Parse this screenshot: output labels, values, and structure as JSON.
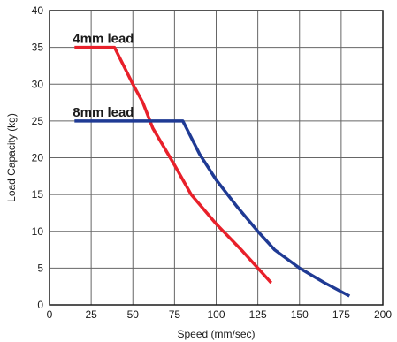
{
  "chart_data": {
    "type": "line",
    "xlabel": "Speed (mm/sec)",
    "ylabel": "Load Capacity (kg)",
    "xlim": [
      0,
      200
    ],
    "ylim": [
      0,
      40
    ],
    "xticks": [
      "0",
      "25",
      "50",
      "75",
      "100",
      "125",
      "150",
      "175",
      "200"
    ],
    "yticks": [
      "0",
      "5",
      "10",
      "15",
      "20",
      "25",
      "30",
      "35",
      "40"
    ],
    "grid": true,
    "legend": "inline",
    "series": [
      {
        "name": "4mm lead",
        "color": "#e8202a",
        "points": [
          [
            15,
            35
          ],
          [
            39,
            35
          ],
          [
            50,
            30
          ],
          [
            56,
            27.5
          ],
          [
            62,
            24
          ],
          [
            75,
            19
          ],
          [
            85,
            15
          ],
          [
            100,
            11
          ],
          [
            115,
            7.5
          ],
          [
            133,
            3
          ]
        ]
      },
      {
        "name": "8mm lead",
        "color": "#1f3a94",
        "points": [
          [
            15,
            25
          ],
          [
            80,
            25
          ],
          [
            90,
            20.5
          ],
          [
            100,
            17
          ],
          [
            112,
            13.5
          ],
          [
            125,
            10
          ],
          [
            135,
            7.5
          ],
          [
            150,
            5
          ],
          [
            165,
            3
          ],
          [
            180,
            1.2
          ]
        ]
      }
    ]
  }
}
